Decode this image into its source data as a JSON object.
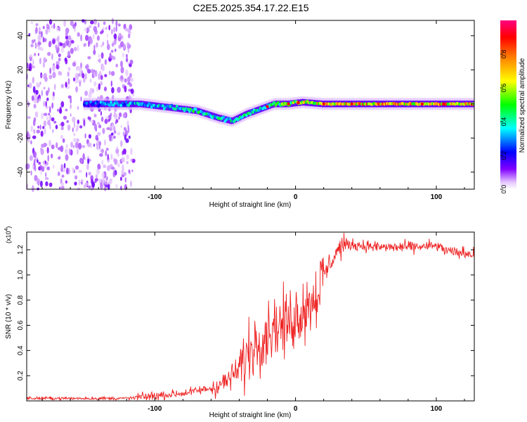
{
  "title": "C2E5.2025.354.17.22.E15",
  "chart_data": [
    {
      "type": "heatmap",
      "xlabel": "Height of straight line (km)",
      "ylabel": "Frequency (Hz)",
      "xlim": [
        -191,
        127
      ],
      "ylim": [
        -50,
        49
      ],
      "xticks": [
        -100,
        0,
        100
      ],
      "xtick_labels": [
        "-100",
        "0",
        "100"
      ],
      "yticks": [
        -40,
        -20,
        0,
        20,
        40
      ],
      "ytick_labels": [
        "-40",
        "-20",
        "0",
        "20",
        "40"
      ],
      "colorbar": {
        "label": "Normalized spectral amplitude",
        "range": [
          0,
          1
        ],
        "ticks": [
          0,
          0.2,
          0.4,
          0.6,
          0.8
        ],
        "tick_labels": [
          "0.0",
          "0.2",
          "0.4",
          "0.6",
          "0.8"
        ],
        "colors": [
          "#ffffff",
          "#8000ff",
          "#0000ff",
          "#00ffff",
          "#00ff00",
          "#ffff00",
          "#ff8000",
          "#ff0000",
          "#ff0080"
        ]
      },
      "ridge": {
        "x": [
          -150,
          -130,
          -110,
          -90,
          -70,
          -55,
          -45,
          -35,
          -25,
          -15,
          -5,
          5,
          20,
          50,
          80,
          110,
          127
        ],
        "frequency": [
          0,
          0,
          0,
          -2,
          -4,
          -8,
          -10,
          -6,
          -3,
          0,
          0,
          1,
          0,
          0,
          0,
          0,
          0
        ],
        "amplitude": [
          0.3,
          0.35,
          0.4,
          0.4,
          0.5,
          0.45,
          0.45,
          0.45,
          0.45,
          0.5,
          0.6,
          0.7,
          0.75,
          0.8,
          0.8,
          0.8,
          0.8
        ]
      }
    },
    {
      "type": "line",
      "xlabel": "Height of straight line (km)",
      "ylabel": "SNR (10 * v/v)",
      "y_multiplier": "(x10",
      "y_multiplier_exp": "4",
      "y_multiplier_close": ")",
      "xlim": [
        -191,
        127
      ],
      "ylim": [
        0,
        1.34
      ],
      "xticks": [
        -100,
        0,
        100
      ],
      "xtick_labels": [
        "-100",
        "0",
        "100"
      ],
      "yticks": [
        0.2,
        0.4,
        0.6,
        0.8,
        1.0,
        1.2
      ],
      "ytick_labels": [
        "0.2",
        "0.4",
        "0.6",
        "0.8",
        "1.0",
        "1.2"
      ],
      "color": "#ee2222",
      "series": [
        {
          "name": "SNR",
          "x": [
            -191,
            -120,
            -100,
            -80,
            -70,
            -60,
            -50,
            -40,
            -35,
            -30,
            -25,
            -20,
            -15,
            -10,
            -5,
            0,
            5,
            10,
            15,
            20,
            25,
            30,
            35,
            40,
            60,
            80,
            100,
            110,
            127
          ],
          "y": [
            0.02,
            0.02,
            0.04,
            0.06,
            0.08,
            0.1,
            0.15,
            0.25,
            0.35,
            0.45,
            0.5,
            0.55,
            0.6,
            0.6,
            0.62,
            0.68,
            0.72,
            0.78,
            0.85,
            1.0,
            1.1,
            1.2,
            1.24,
            1.24,
            1.22,
            1.22,
            1.23,
            1.18,
            1.17
          ]
        }
      ]
    }
  ]
}
